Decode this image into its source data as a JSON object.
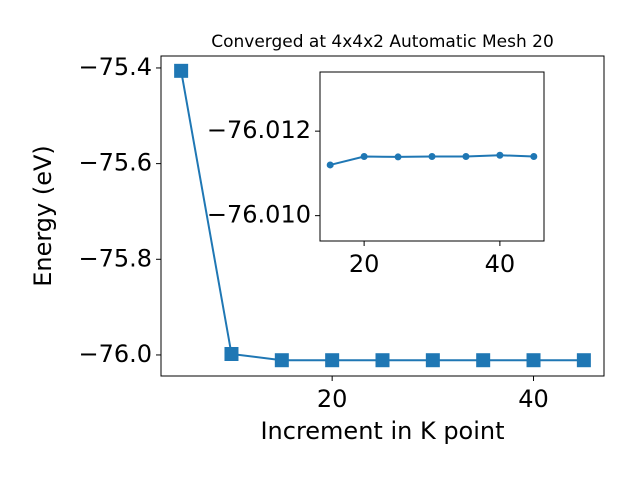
{
  "chart_data": [
    {
      "type": "line",
      "title": "Converged at 4x4x2 Automatic Mesh 20",
      "xlabel": "Increment in K point",
      "ylabel": "Energy (eV)",
      "x": [
        5,
        10,
        15,
        20,
        25,
        30,
        35,
        40,
        45
      ],
      "series": [
        {
          "color": "#1f77b4",
          "marker": "square",
          "values": [
            -75.406,
            -75.998,
            -76.011,
            -76.011,
            -76.011,
            -76.011,
            -76.011,
            -76.011,
            -76.011
          ]
        }
      ],
      "xlim": [
        3,
        47
      ],
      "ylim": [
        -76.044,
        -75.375
      ],
      "inverted": false,
      "xticks": [
        20,
        40
      ],
      "yticks": [
        {
          "value": -75.4,
          "label": "−75.4"
        },
        {
          "value": -75.6,
          "label": "−75.6"
        },
        {
          "value": -75.8,
          "label": "−75.8"
        },
        {
          "value": -76.0,
          "label": "−76.0"
        }
      ]
    },
    {
      "type": "line",
      "x": [
        15,
        20,
        25,
        30,
        35,
        40,
        45
      ],
      "series": [
        {
          "color": "#1f77b4",
          "marker": "circle",
          "values": [
            -76.0112,
            -76.0114,
            -76.01139,
            -76.0114,
            -76.0114,
            -76.01143,
            -76.0114
          ]
        }
      ],
      "xlim": [
        13.5,
        46.5
      ],
      "ylim": [
        -76.0134,
        -76.0094
      ],
      "inverted": true,
      "xticks": [
        20,
        40
      ],
      "yticks": [
        {
          "value": -76.012,
          "label": "−76.012"
        },
        {
          "value": -76.01,
          "label": "−76.010"
        }
      ]
    }
  ]
}
